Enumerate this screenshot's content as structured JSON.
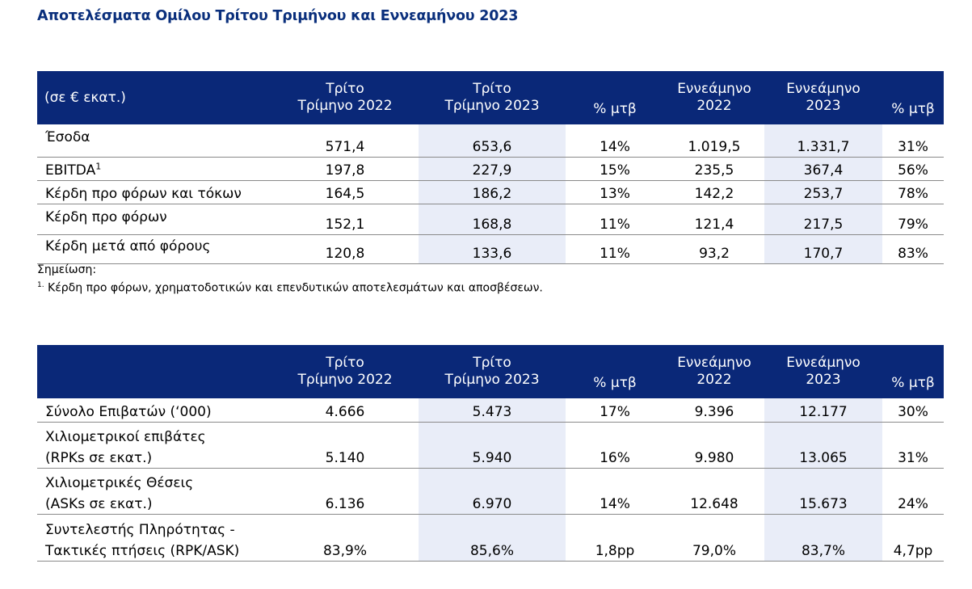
{
  "title": "Αποτελέσματα Ομίλου Τρίτου Τριμήνου και Εννεαμήνου 2023",
  "colors": {
    "header_bg": "#0a2878",
    "title": "#0a2f7c",
    "shade": "#e9edf8"
  },
  "table1": {
    "unit_label": "(σε € εκατ.)",
    "headers": [
      [
        "Τρίτο",
        "Τρίμηνο 2022"
      ],
      [
        "Τρίτο",
        "Τρίμηνο 2023"
      ],
      [
        "% μτβ"
      ],
      [
        "Εννεάμηνο",
        "2022"
      ],
      [
        "Εννεάμηνο",
        "2023"
      ],
      [
        "% μτβ"
      ]
    ],
    "rows": [
      {
        "label": "Έσοδα",
        "sup": "",
        "values": [
          "571,4",
          "653,6",
          "14%",
          "1.019,5",
          "1.331,7",
          "31%"
        ]
      },
      {
        "label": "EBITDA",
        "sup": "1",
        "values": [
          "197,8",
          "227,9",
          "15%",
          "235,5",
          "367,4",
          "56%"
        ]
      },
      {
        "label": "Κέρδη προ φόρων και τόκων",
        "sup": "",
        "values": [
          "164,5",
          "186,2",
          "13%",
          "142,2",
          "253,7",
          "78%"
        ]
      },
      {
        "label": "Κέρδη προ φόρων",
        "sup": "",
        "values": [
          "152,1",
          "168,8",
          "11%",
          "121,4",
          "217,5",
          "79%"
        ]
      },
      {
        "label": "Κέρδη μετά από φόρους",
        "sup": "",
        "values": [
          "120,8",
          "133,6",
          "11%",
          "93,2",
          "170,7",
          "83%"
        ]
      }
    ]
  },
  "note": {
    "heading": "Σημείωση:",
    "marker": "1.",
    "text": "Κέρδη προ φόρων, χρηματοδοτικών και επενδυτικών αποτελεσμάτων και αποσβέσεων."
  },
  "table2": {
    "unit_label": "",
    "headers": [
      [
        "Τρίτο",
        "Τρίμηνο 2022"
      ],
      [
        "Τρίτο",
        "Τρίμηνο 2023"
      ],
      [
        "% μτβ"
      ],
      [
        "Εννεάμηνο",
        "2022"
      ],
      [
        "Εννεάμηνο",
        "2023"
      ],
      [
        "% μτβ"
      ]
    ],
    "rows": [
      {
        "label": [
          "Σύνολο Επιβατών (‘000)"
        ],
        "values": [
          "4.666",
          "5.473",
          "17%",
          "9.396",
          "12.177",
          "30%"
        ]
      },
      {
        "label": [
          "Χιλιομετρικοί επιβάτες",
          "(RPKs σε εκατ.)"
        ],
        "values": [
          "5.140",
          "5.940",
          "16%",
          "9.980",
          "13.065",
          "31%"
        ]
      },
      {
        "label": [
          "Χιλιομετρικές Θέσεις",
          "(ASKs σε εκατ.)"
        ],
        "values": [
          "6.136",
          "6.970",
          "14%",
          "12.648",
          "15.673",
          "24%"
        ]
      },
      {
        "label": [
          "Συντελεστής Πληρότητας -",
          "Τακτικές πτήσεις (RPK/ASK)"
        ],
        "values": [
          "83,9%",
          "85,6%",
          "1,8pp",
          "79,0%",
          "83,7%",
          "4,7pp"
        ]
      }
    ]
  }
}
